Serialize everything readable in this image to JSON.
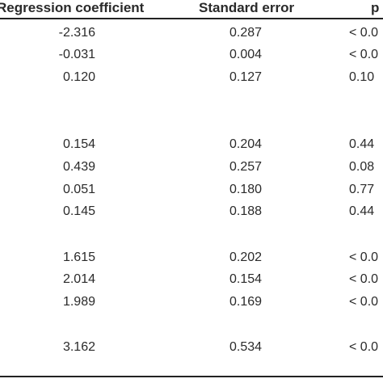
{
  "headers": {
    "coefficient": "Regression coefficient",
    "standard_error": "Standard error",
    "p": "p"
  },
  "rows": [
    {
      "coef": "-2.316",
      "se": "0.287",
      "p": "< 0.0"
    },
    {
      "coef": "-0.031",
      "se": "0.004",
      "p": "< 0.0"
    },
    {
      "coef": "0.120",
      "se": "0.127",
      "p": "0.10"
    },
    {
      "coef": "0.154",
      "se": "0.204",
      "p": "0.44"
    },
    {
      "coef": "0.439",
      "se": "0.257",
      "p": "0.08"
    },
    {
      "coef": "0.051",
      "se": "0.180",
      "p": "0.77"
    },
    {
      "coef": "0.145",
      "se": "0.188",
      "p": "0.44"
    },
    {
      "coef": "1.615",
      "se": "0.202",
      "p": "< 0.0"
    },
    {
      "coef": "2.014",
      "se": "0.154",
      "p": "< 0.0"
    },
    {
      "coef": "1.989",
      "se": "0.169",
      "p": "< 0.0"
    },
    {
      "coef": "3.162",
      "se": "0.534",
      "p": "< 0.0"
    }
  ]
}
